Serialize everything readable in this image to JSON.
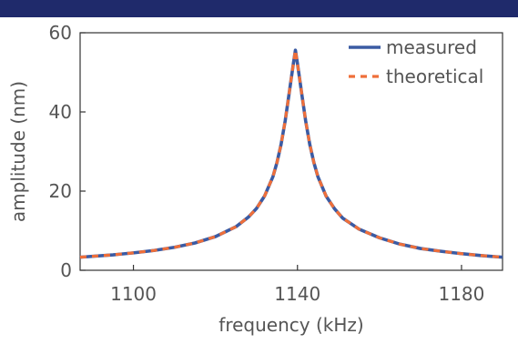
{
  "colors": {
    "top_bar": "#1f2a6b",
    "measured": "#3b5ba3",
    "theoretical": "#ef6f3a",
    "axis": "#333333",
    "text": "#555555"
  },
  "chart_data": {
    "type": "line",
    "xlabel": "frequency (kHz)",
    "ylabel": "amplitude (nm)",
    "xlim": [
      1087,
      1190
    ],
    "ylim": [
      0,
      60
    ],
    "xticks": [
      1100,
      1140,
      1180
    ],
    "yticks": [
      0,
      20,
      40,
      60
    ],
    "grid": false,
    "legend_position": "top-right",
    "resonance": {
      "f0": 1139.5,
      "peak_amplitude": 55.6,
      "half_width": 3.6
    },
    "series": [
      {
        "name": "measured",
        "style": "solid",
        "x": [
          1087,
          1095,
          1100,
          1105,
          1110,
          1115,
          1120,
          1125,
          1128,
          1130,
          1132,
          1134,
          1135,
          1136,
          1137,
          1138,
          1138.5,
          1139,
          1139.5,
          1140,
          1140.5,
          1141,
          1142,
          1143,
          1144,
          1145,
          1147,
          1149,
          1151,
          1155,
          1160,
          1165,
          1170,
          1175,
          1180,
          1185,
          1190
        ],
        "y": [
          3.3,
          3.9,
          4.4,
          5.0,
          5.8,
          6.9,
          8.5,
          11.0,
          13.4,
          15.6,
          18.8,
          23.6,
          27.2,
          31.8,
          37.7,
          44.9,
          48.6,
          52.2,
          55.6,
          52.2,
          48.6,
          44.9,
          37.7,
          31.8,
          27.2,
          23.6,
          18.7,
          15.6,
          13.2,
          10.4,
          8.2,
          6.6,
          5.5,
          4.8,
          4.2,
          3.7,
          3.3
        ]
      },
      {
        "name": "theoretical",
        "style": "dashed",
        "x": [
          1087,
          1095,
          1100,
          1105,
          1110,
          1115,
          1120,
          1125,
          1128,
          1130,
          1132,
          1134,
          1135,
          1136,
          1137,
          1138,
          1138.5,
          1139,
          1139.5,
          1140,
          1140.5,
          1141,
          1142,
          1143,
          1144,
          1145,
          1147,
          1149,
          1151,
          1155,
          1160,
          1165,
          1170,
          1175,
          1180,
          1185,
          1190
        ],
        "y": [
          3.3,
          3.9,
          4.4,
          5.0,
          5.8,
          6.9,
          8.5,
          11.0,
          13.4,
          15.6,
          18.8,
          23.6,
          27.2,
          31.8,
          37.7,
          44.9,
          48.6,
          52.2,
          55.6,
          52.2,
          48.6,
          44.9,
          37.7,
          31.8,
          27.2,
          23.6,
          18.7,
          15.6,
          13.2,
          10.4,
          8.2,
          6.6,
          5.5,
          4.8,
          4.2,
          3.7,
          3.3
        ]
      }
    ]
  }
}
